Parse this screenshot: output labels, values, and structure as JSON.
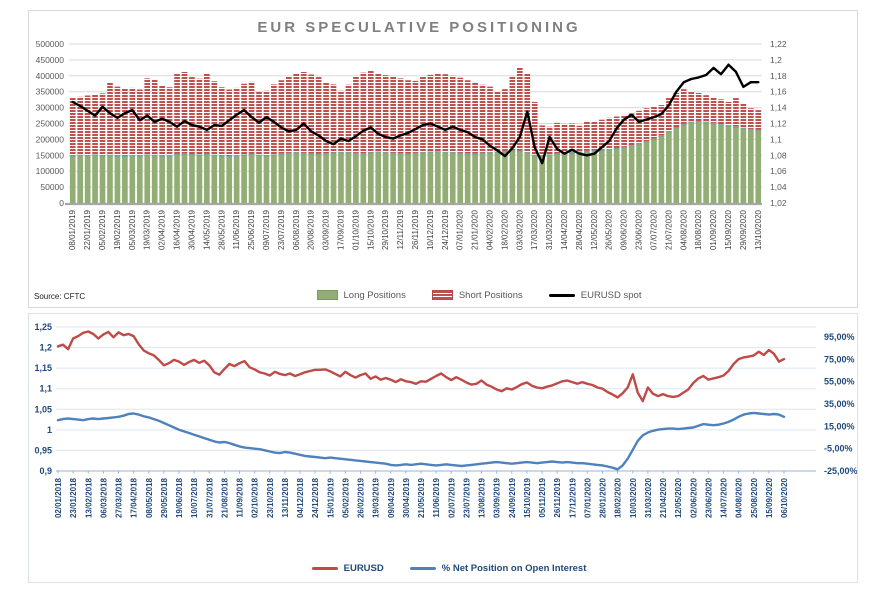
{
  "colors": {
    "long": "#92AE74",
    "long_cap": "#7CA695",
    "short": "#C0504D",
    "spot": "#000000",
    "red_line": "#BE4B48",
    "blue_line": "#4F81BD",
    "grid_top": "#D9D9D9",
    "grid_bottom": "#DCE6F1",
    "axis_top": "#A6A6A6",
    "axis_bottom": "#95B3D7",
    "text_top": "#595959",
    "text_blue": "#1F497D",
    "title": "#808080"
  },
  "chart_data": [
    {
      "type": "bar",
      "title": "EUR SPECULATIVE POSITIONING",
      "source": "Source: CFTC",
      "legend": {
        "long": "Long Positions",
        "short": "Short Positions",
        "spot": "EURUSD spot"
      },
      "left_axis": {
        "min": 0,
        "max": 500000,
        "ticks": [
          "0",
          "50000",
          "100000",
          "150000",
          "200000",
          "250000",
          "300000",
          "350000",
          "400000",
          "450000",
          "500000"
        ]
      },
      "right_axis": {
        "min": 1.02,
        "max": 1.22,
        "ticks": [
          "1,02",
          "1,04",
          "1,06",
          "1,08",
          "1,1",
          "1,12",
          "1,14",
          "1,16",
          "1,18",
          "1,2",
          "1,22"
        ]
      },
      "x_tick_every": 2,
      "x_tick_labels": [
        "08/01/2019",
        "22/01/2019",
        "05/02/2019",
        "19/02/2019",
        "05/03/2019",
        "19/03/2019",
        "02/04/2019",
        "16/04/2019",
        "30/04/2019",
        "14/05/2019",
        "28/05/2019",
        "11/06/2019",
        "25/06/2019",
        "09/07/2019",
        "23/07/2019",
        "06/08/2019",
        "20/08/2019",
        "03/09/2019",
        "17/09/2019",
        "01/10/2019",
        "15/10/2019",
        "29/10/2019",
        "12/11/2019",
        "26/11/2019",
        "10/12/2019",
        "24/12/2019",
        "07/01/2020",
        "21/01/2020",
        "04/02/2020",
        "18/02/2020",
        "03/03/2020",
        "17/03/2020",
        "31/03/2020",
        "14/04/2020",
        "28/04/2020",
        "12/05/2020",
        "26/05/2020",
        "09/06/2020",
        "23/06/2020",
        "07/07/2020",
        "21/07/2020",
        "04/08/2020",
        "18/08/2020",
        "01/09/2020",
        "15/09/2020",
        "29/09/2020",
        "13/10/2020"
      ],
      "series": {
        "long_positions": [
          150000,
          152000,
          151000,
          153000,
          150000,
          152000,
          150000,
          149000,
          151000,
          150000,
          153000,
          152000,
          150000,
          151000,
          155000,
          156000,
          154000,
          153000,
          155000,
          152000,
          150000,
          149000,
          151000,
          153000,
          155000,
          152000,
          150000,
          153000,
          156000,
          158000,
          160000,
          158000,
          156000,
          155000,
          157000,
          159000,
          161000,
          160000,
          158000,
          157000,
          159000,
          162000,
          160000,
          158000,
          157000,
          156000,
          158000,
          160000,
          162000,
          163000,
          161000,
          160000,
          158000,
          157000,
          156000,
          158000,
          160000,
          162000,
          164000,
          166000,
          165000,
          160000,
          152000,
          150000,
          153000,
          156000,
          158000,
          160000,
          162000,
          164000,
          166000,
          168000,
          170000,
          173000,
          177000,
          182000,
          188000,
          195000,
          203000,
          213000,
          226000,
          239000,
          249000,
          256000,
          258000,
          256000,
          252000,
          248000,
          245000,
          241000,
          237000,
          233000,
          230000
        ],
        "short_positions": [
          180000,
          182000,
          187000,
          188000,
          195000,
          226000,
          216000,
          211000,
          211000,
          207000,
          239000,
          236000,
          221000,
          213000,
          253000,
          256000,
          242000,
          238000,
          252000,
          231000,
          214000,
          208000,
          211000,
          222000,
          226000,
          197000,
          203000,
          220000,
          230000,
          240000,
          248000,
          254000,
          248000,
          241000,
          223000,
          214000,
          192000,
          212000,
          240000,
          253000,
          256000,
          246000,
          242000,
          240000,
          235000,
          230000,
          226000,
          239000,
          241000,
          245000,
          244000,
          240000,
          236000,
          229000,
          222000,
          214000,
          206000,
          190000,
          194000,
          232000,
          260000,
          248000,
          166000,
          94000,
          87000,
          96000,
          88000,
          90000,
          81000,
          94000,
          90000,
          94000,
          98000,
          99000,
          100000,
          100000,
          102000,
          103000,
          101000,
          95000,
          104000,
          107000,
          109000,
          96000,
          88000,
          83000,
          81000,
          78000,
          73000,
          89000,
          75000,
          65000,
          62000
        ],
        "eurusd_spot": [
          1.147,
          1.142,
          1.136,
          1.13,
          1.141,
          1.133,
          1.127,
          1.133,
          1.137,
          1.124,
          1.13,
          1.122,
          1.126,
          1.122,
          1.116,
          1.123,
          1.118,
          1.116,
          1.112,
          1.118,
          1.117,
          1.124,
          1.131,
          1.137,
          1.128,
          1.121,
          1.128,
          1.122,
          1.115,
          1.11,
          1.112,
          1.12,
          1.11,
          1.105,
          1.098,
          1.094,
          1.101,
          1.098,
          1.104,
          1.111,
          1.115,
          1.107,
          1.103,
          1.101,
          1.105,
          1.108,
          1.113,
          1.118,
          1.12,
          1.116,
          1.112,
          1.116,
          1.112,
          1.109,
          1.103,
          1.1,
          1.092,
          1.086,
          1.079,
          1.089,
          1.103,
          1.135,
          1.09,
          1.07,
          1.103,
          1.088,
          1.082,
          1.087,
          1.082,
          1.08,
          1.082,
          1.09,
          1.098,
          1.114,
          1.125,
          1.131,
          1.122,
          1.125,
          1.128,
          1.132,
          1.143,
          1.16,
          1.172,
          1.176,
          1.178,
          1.181,
          1.19,
          1.182,
          1.194,
          1.185,
          1.166,
          1.172,
          1.172
        ]
      }
    },
    {
      "type": "line",
      "legend": {
        "eurusd": "EURUSD",
        "netpos": "% Net Position on Open Interest"
      },
      "left_axis": {
        "min": 0.9,
        "max": 1.25,
        "ticks": [
          "0,9",
          "0,95",
          "1",
          "1,05",
          "1,1",
          "1,15",
          "1,2",
          "1,25"
        ]
      },
      "right_axis": {
        "min": -25,
        "max": 95,
        "ticks": [
          "95,00%",
          "75,00%",
          "55,00%",
          "35,00%",
          "15,00%",
          "-5,00%",
          "-25,00%"
        ]
      },
      "x_tick_every": 3,
      "x_tick_labels": [
        "02/01/2018",
        "23/01/2018",
        "13/02/2018",
        "06/03/2018",
        "27/03/2018",
        "17/04/2018",
        "08/05/2018",
        "29/05/2018",
        "19/06/2018",
        "10/07/2018",
        "31/07/2018",
        "21/08/2018",
        "11/09/2018",
        "02/10/2018",
        "23/10/2018",
        "13/11/2018",
        "04/12/2018",
        "24/12/2018",
        "15/01/2019",
        "05/02/2019",
        "26/02/2019",
        "19/03/2019",
        "09/04/2019",
        "30/04/2019",
        "21/05/2019",
        "11/06/2019",
        "02/07/2019",
        "23/07/2019",
        "13/08/2019",
        "03/09/2019",
        "24/09/2019",
        "15/10/2019",
        "05/11/2019",
        "26/11/2019",
        "17/12/2019",
        "07/01/2020",
        "28/01/2020",
        "18/02/2020",
        "10/03/2020",
        "31/03/2020",
        "21/04/2020",
        "12/05/2020",
        "02/06/2020",
        "23/06/2020",
        "14/07/2020",
        "04/08/2020",
        "25/08/2020",
        "15/09/2020",
        "06/10/2020"
      ],
      "series": {
        "eurusd": [
          1.203,
          1.207,
          1.196,
          1.222,
          1.228,
          1.236,
          1.239,
          1.233,
          1.222,
          1.232,
          1.238,
          1.225,
          1.237,
          1.23,
          1.233,
          1.228,
          1.208,
          1.193,
          1.186,
          1.181,
          1.17,
          1.157,
          1.162,
          1.17,
          1.166,
          1.158,
          1.165,
          1.17,
          1.163,
          1.168,
          1.157,
          1.14,
          1.134,
          1.148,
          1.16,
          1.155,
          1.162,
          1.167,
          1.152,
          1.147,
          1.14,
          1.137,
          1.132,
          1.141,
          1.136,
          1.133,
          1.137,
          1.131,
          1.135,
          1.14,
          1.143,
          1.146,
          1.146,
          1.147,
          1.142,
          1.136,
          1.13,
          1.141,
          1.133,
          1.127,
          1.133,
          1.137,
          1.124,
          1.13,
          1.122,
          1.126,
          1.122,
          1.116,
          1.123,
          1.118,
          1.116,
          1.112,
          1.118,
          1.117,
          1.124,
          1.131,
          1.137,
          1.128,
          1.121,
          1.128,
          1.122,
          1.115,
          1.11,
          1.112,
          1.12,
          1.11,
          1.105,
          1.098,
          1.094,
          1.101,
          1.098,
          1.104,
          1.111,
          1.115,
          1.107,
          1.103,
          1.101,
          1.105,
          1.108,
          1.113,
          1.118,
          1.12,
          1.116,
          1.112,
          1.116,
          1.112,
          1.109,
          1.103,
          1.1,
          1.092,
          1.086,
          1.079,
          1.089,
          1.103,
          1.135,
          1.09,
          1.07,
          1.103,
          1.088,
          1.082,
          1.087,
          1.082,
          1.08,
          1.082,
          1.09,
          1.098,
          1.114,
          1.125,
          1.131,
          1.122,
          1.125,
          1.128,
          1.132,
          1.143,
          1.16,
          1.172,
          1.176,
          1.178,
          1.181,
          1.19,
          1.182,
          1.194,
          1.185,
          1.166,
          1.172
        ],
        "net_position_pct": [
          20.5,
          21.5,
          22,
          21.5,
          21,
          20.5,
          21.5,
          22,
          21.5,
          22,
          22.5,
          23,
          23.5,
          24.5,
          26,
          26.5,
          25.5,
          24,
          23,
          21.5,
          20,
          18,
          16,
          14,
          12,
          10.5,
          9,
          7.5,
          6,
          4.5,
          3,
          1.5,
          0.5,
          1,
          0,
          -1.5,
          -3,
          -4,
          -4.5,
          -5,
          -5.5,
          -6.5,
          -7.5,
          -8.5,
          -9,
          -8,
          -8.5,
          -9.5,
          -10.5,
          -11.5,
          -12,
          -12.5,
          -13,
          -13.5,
          -13,
          -13.5,
          -14,
          -14.5,
          -15,
          -15.5,
          -16,
          -16.5,
          -17,
          -17.5,
          -18,
          -18.5,
          -19.5,
          -20,
          -19.5,
          -19,
          -19.5,
          -19,
          -18.5,
          -19,
          -19.5,
          -20,
          -19.5,
          -19,
          -19.5,
          -20,
          -20.5,
          -20,
          -19.5,
          -19,
          -18.5,
          -18,
          -17.5,
          -17,
          -17.5,
          -18,
          -18.5,
          -18,
          -17.5,
          -17,
          -17.5,
          -18,
          -17.5,
          -17,
          -16.5,
          -17,
          -17.5,
          -17,
          -17.5,
          -18,
          -18,
          -18.5,
          -19,
          -19.5,
          -20,
          -21,
          -22,
          -23.5,
          -20,
          -14,
          -6,
          2,
          7,
          9.5,
          11,
          12,
          12.5,
          13,
          13,
          12.5,
          13,
          13.5,
          14,
          15.5,
          17,
          16.5,
          16,
          16.5,
          17.5,
          19,
          21,
          23.5,
          25.5,
          26.5,
          27,
          26.5,
          26,
          25.5,
          26,
          25.5,
          23.5
        ]
      }
    }
  ]
}
